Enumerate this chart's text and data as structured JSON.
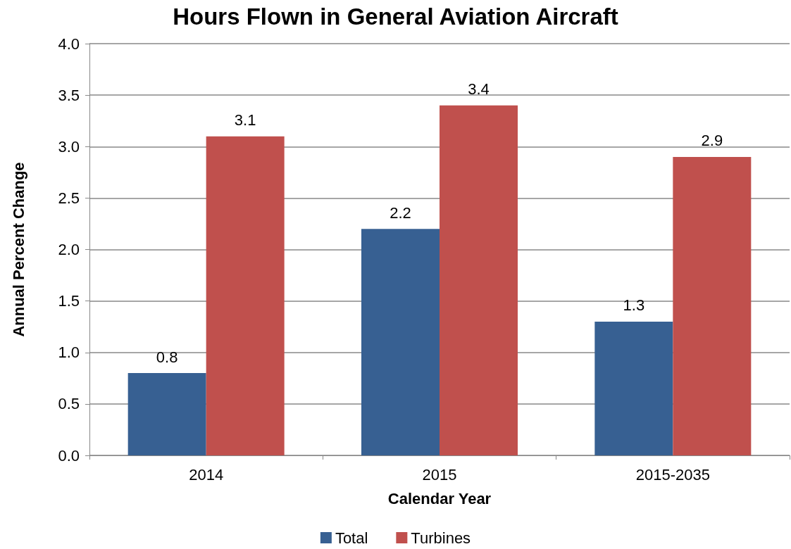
{
  "chart_data": {
    "type": "bar",
    "title": "Hours Flown in General Aviation Aircraft",
    "xlabel": "Calendar Year",
    "ylabel": "Annual Percent Change",
    "categories": [
      "2014",
      "2015",
      "2015-2035"
    ],
    "series": [
      {
        "name": "Total",
        "color": "#376092",
        "values": [
          0.8,
          2.2,
          1.3
        ]
      },
      {
        "name": "Turbines",
        "color": "#c0504d",
        "values": [
          3.1,
          3.4,
          2.9
        ]
      }
    ],
    "ylim": [
      0,
      4
    ],
    "yticks": [
      {
        "value": 0,
        "label": "0.0"
      },
      {
        "value": 0.5,
        "label": "0.5"
      },
      {
        "value": 1,
        "label": "1.0"
      },
      {
        "value": 1.5,
        "label": "1.5"
      },
      {
        "value": 2,
        "label": "2.0"
      },
      {
        "value": 2.5,
        "label": "2.5"
      },
      {
        "value": 3,
        "label": "3.0"
      },
      {
        "value": 3.5,
        "label": "3.5"
      },
      {
        "value": 4,
        "label": "4.0"
      }
    ],
    "grid": "y",
    "legend": "bottom",
    "data_labels": true
  }
}
